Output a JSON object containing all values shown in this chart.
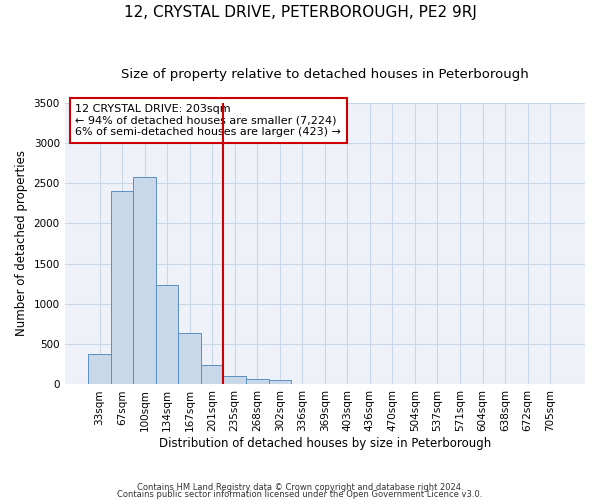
{
  "title": "12, CRYSTAL DRIVE, PETERBOROUGH, PE2 9RJ",
  "subtitle": "Size of property relative to detached houses in Peterborough",
  "xlabel": "Distribution of detached houses by size in Peterborough",
  "ylabel": "Number of detached properties",
  "footnote1": "Contains HM Land Registry data © Crown copyright and database right 2024.",
  "footnote2": "Contains public sector information licensed under the Open Government Licence v3.0.",
  "categories": [
    "33sqm",
    "67sqm",
    "100sqm",
    "134sqm",
    "167sqm",
    "201sqm",
    "235sqm",
    "268sqm",
    "302sqm",
    "336sqm",
    "369sqm",
    "403sqm",
    "436sqm",
    "470sqm",
    "504sqm",
    "537sqm",
    "571sqm",
    "604sqm",
    "638sqm",
    "672sqm",
    "705sqm"
  ],
  "values": [
    380,
    2400,
    2580,
    1240,
    640,
    240,
    110,
    70,
    60,
    0,
    0,
    0,
    0,
    0,
    0,
    0,
    0,
    0,
    0,
    0,
    0
  ],
  "bar_color": "#c8d8e8",
  "bar_edge_color": "#5a90c0",
  "grid_color": "#c8d8e8",
  "background_color": "#eef2f8",
  "vline_x": 5.5,
  "vline_color": "#cc0000",
  "annotation_line1": "12 CRYSTAL DRIVE: 203sqm",
  "annotation_line2": "← 94% of detached houses are smaller (7,224)",
  "annotation_line3": "6% of semi-detached houses are larger (423) →",
  "annotation_box_color": "#ffffff",
  "annotation_box_edge": "#cc0000",
  "ylim": [
    0,
    3500
  ],
  "yticks": [
    0,
    500,
    1000,
    1500,
    2000,
    2500,
    3000,
    3500
  ],
  "title_fontsize": 11,
  "subtitle_fontsize": 9.5,
  "label_fontsize": 8.5,
  "tick_fontsize": 7.5,
  "annot_fontsize": 8
}
